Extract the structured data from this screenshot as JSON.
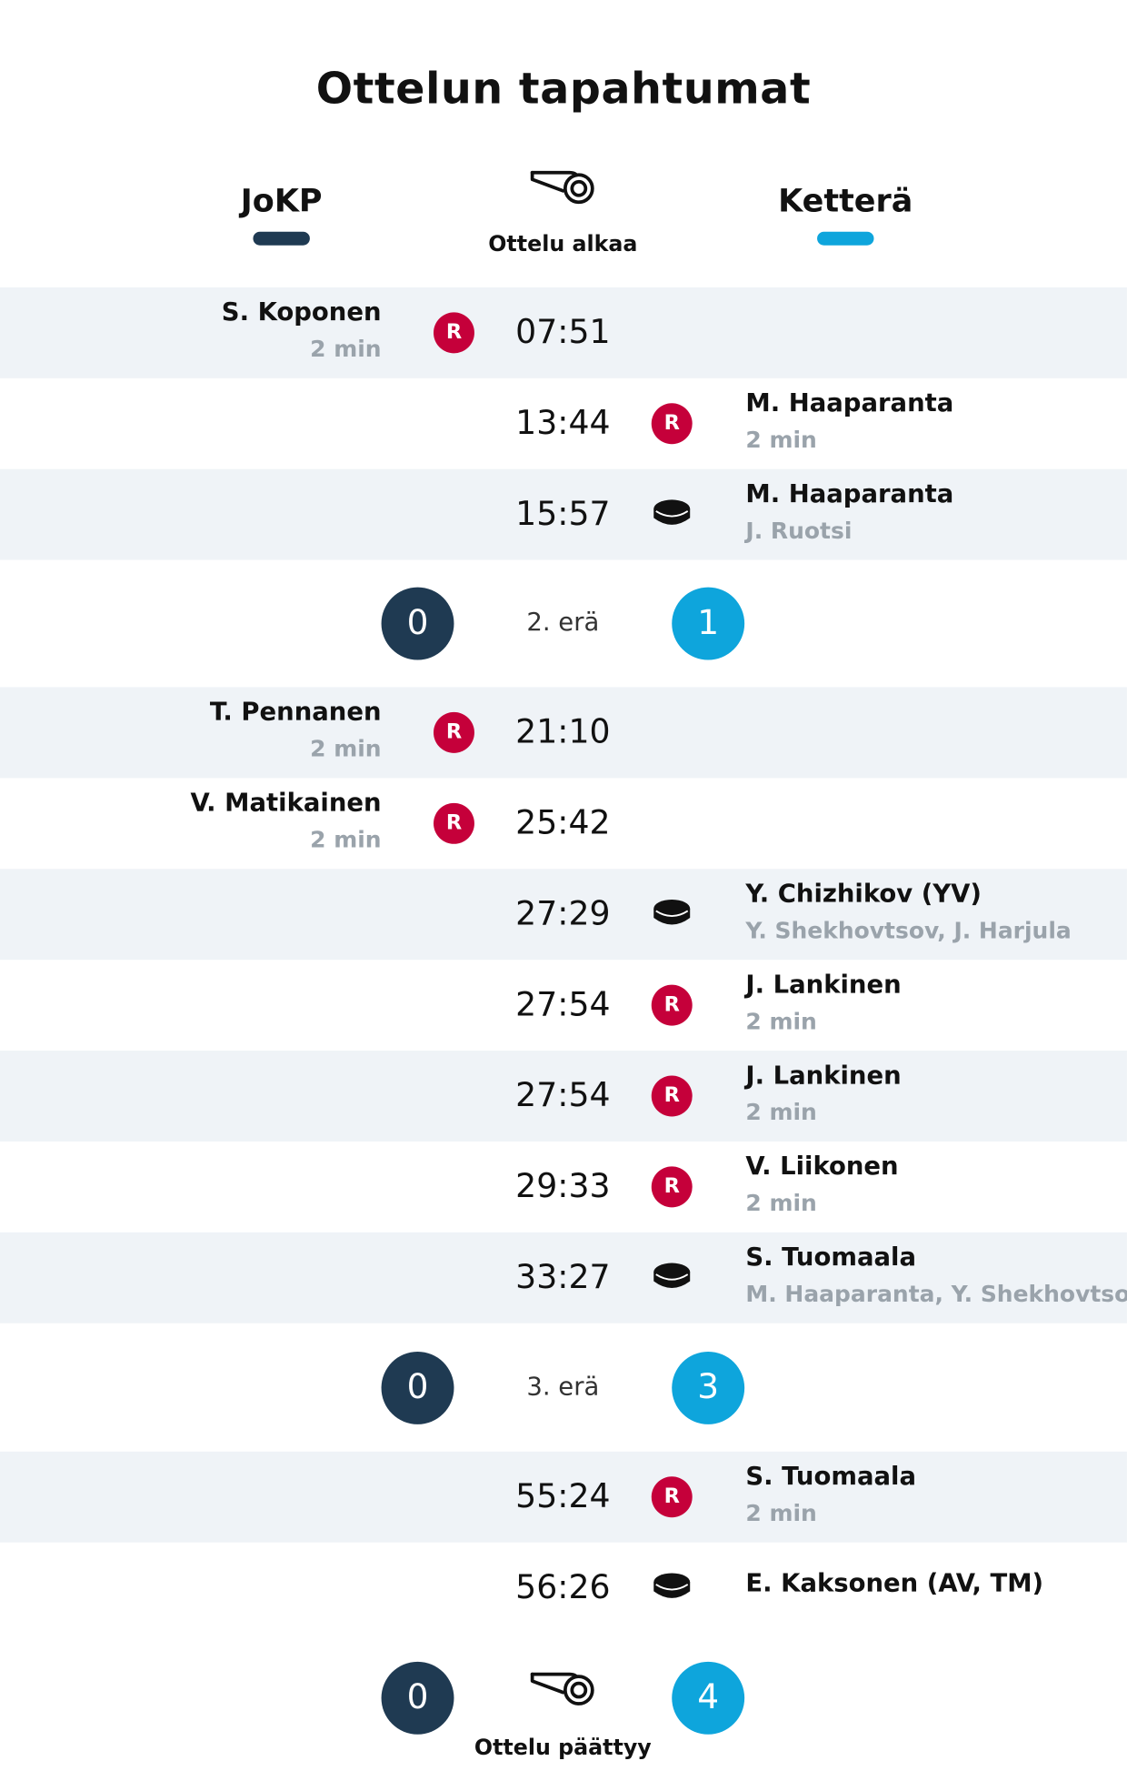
{
  "title": "Ottelun tapahtumat",
  "teams": {
    "home": {
      "name": "JoKP",
      "color": "#1f3a52"
    },
    "away": {
      "name": "Ketterä",
      "color": "#0ea5dc"
    }
  },
  "start_label": "Ottelu alkaa",
  "end_label": "Ottelu päättyy",
  "penalty_icon_letter": "R",
  "events": [
    {
      "time": "07:51",
      "type": "penalty",
      "side": "home",
      "player": "S. Koponen",
      "detail": "2 min"
    },
    {
      "time": "13:44",
      "type": "penalty",
      "side": "away",
      "player": "M. Haaparanta",
      "detail": "2 min"
    },
    {
      "time": "15:57",
      "type": "goal",
      "side": "away",
      "player": "M. Haaparanta",
      "detail": "J. Ruotsi"
    },
    {
      "time": "21:10",
      "type": "penalty",
      "side": "home",
      "player": "T. Pennanen",
      "detail": "2 min"
    },
    {
      "time": "25:42",
      "type": "penalty",
      "side": "home",
      "player": "V. Matikainen",
      "detail": "2 min"
    },
    {
      "time": "27:29",
      "type": "goal",
      "side": "away",
      "player": "Y. Chizhikov (YV)",
      "detail": "Y. Shekhovtsov, J. Harjula"
    },
    {
      "time": "27:54",
      "type": "penalty",
      "side": "away",
      "player": "J. Lankinen",
      "detail": "2 min"
    },
    {
      "time": "27:54",
      "type": "penalty",
      "side": "away",
      "player": "J. Lankinen",
      "detail": "2 min"
    },
    {
      "time": "29:33",
      "type": "penalty",
      "side": "away",
      "player": "V. Liikonen",
      "detail": "2 min"
    },
    {
      "time": "33:27",
      "type": "goal",
      "side": "away",
      "player": "S. Tuomaala",
      "detail": "M. Haaparanta, Y. Shekhovtsov"
    },
    {
      "time": "55:24",
      "type": "penalty",
      "side": "away",
      "player": "S. Tuomaala",
      "detail": "2 min"
    },
    {
      "time": "56:26",
      "type": "goal",
      "side": "away",
      "player": "E. Kaksonen (AV, TM)",
      "detail": ""
    }
  ],
  "periods": [
    {
      "label": "2. erä",
      "home_score": "0",
      "away_score": "1"
    },
    {
      "label": "3. erä",
      "home_score": "0",
      "away_score": "3"
    }
  ],
  "final": {
    "home_score": "0",
    "away_score": "4"
  }
}
